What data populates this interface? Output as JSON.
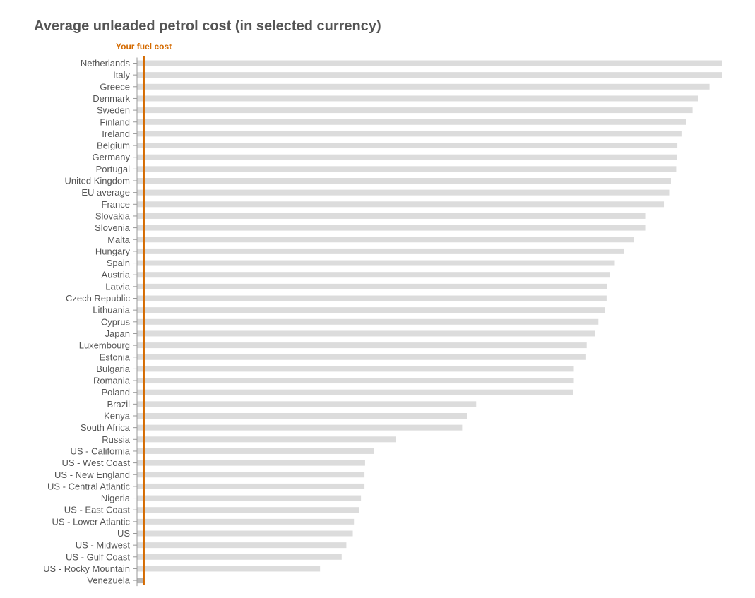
{
  "title": "Average unleaded petrol cost (in selected currency)",
  "colors": {
    "bar": "#dcdcdc",
    "highlight_bar": "#b8b8b8",
    "reference_line": "#d46a00",
    "text": "#555555",
    "axis": "#999999"
  },
  "chart_data": {
    "type": "bar",
    "orientation": "horizontal",
    "title": "Average unleaded petrol cost (in selected currency)",
    "xlabel": "",
    "ylabel": "",
    "xlim": [
      0,
      100
    ],
    "grid": false,
    "reference_line": {
      "label": "Your fuel cost",
      "value": 1.2
    },
    "categories": [
      "Netherlands",
      "Italy",
      "Greece",
      "Denmark",
      "Sweden",
      "Finland",
      "Ireland",
      "Belgium",
      "Germany",
      "Portugal",
      "United Kingdom",
      "EU average",
      "France",
      "Slovakia",
      "Slovenia",
      "Malta",
      "Hungary",
      "Spain",
      "Austria",
      "Latvia",
      "Czech Republic",
      "Lithuania",
      "Cyprus",
      "Japan",
      "Luxembourg",
      "Estonia",
      "Bulgaria",
      "Romania",
      "Poland",
      "Brazil",
      "Kenya",
      "South Africa",
      "Russia",
      "US - California",
      "US - West Coast",
      "US - New England",
      "US - Central Atlantic",
      "Nigeria",
      "US - East Coast",
      "US - Lower Atlantic",
      "US",
      "US - Midwest",
      "US - Gulf Coast",
      "US - Rocky Mountain",
      "Venezuela"
    ],
    "values": [
      100,
      100,
      97.9,
      95.9,
      95.0,
      93.9,
      93.1,
      92.4,
      92.3,
      92.2,
      91.3,
      91.0,
      90.1,
      86.9,
      86.9,
      84.9,
      83.3,
      81.7,
      80.8,
      80.4,
      80.3,
      80.0,
      78.9,
      78.3,
      76.9,
      76.8,
      74.7,
      74.7,
      74.6,
      58.0,
      56.4,
      55.6,
      44.3,
      40.5,
      39.0,
      38.9,
      38.9,
      38.3,
      38.0,
      37.1,
      36.9,
      35.8,
      35.0,
      31.3,
      1.2
    ]
  }
}
